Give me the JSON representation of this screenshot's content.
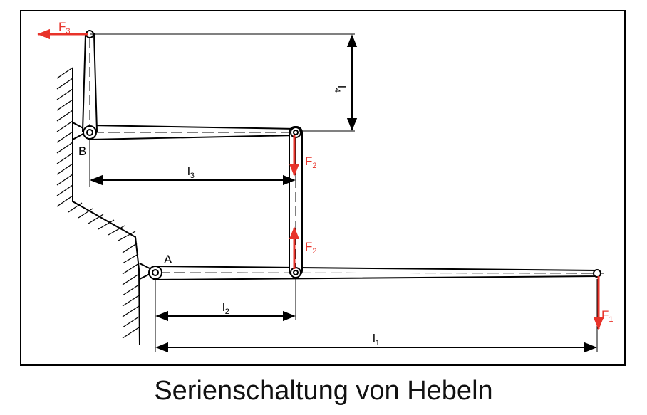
{
  "caption": "Serienschaltung von Hebeln",
  "labels": {
    "point_a": "A",
    "point_b": "B",
    "f1": {
      "main": "F",
      "sub": "1"
    },
    "f2_top": {
      "main": "F",
      "sub": "2"
    },
    "f2_bottom": {
      "main": "F",
      "sub": "2"
    },
    "f3": {
      "main": "F",
      "sub": "3"
    },
    "l1": {
      "main": "l",
      "sub": "1"
    },
    "l2": {
      "main": "l",
      "sub": "2"
    },
    "l3": {
      "main": "l",
      "sub": "3"
    },
    "l4": {
      "main": "l",
      "sub": "4"
    }
  },
  "colors": {
    "force": "#e8332a",
    "line": "#000000"
  }
}
